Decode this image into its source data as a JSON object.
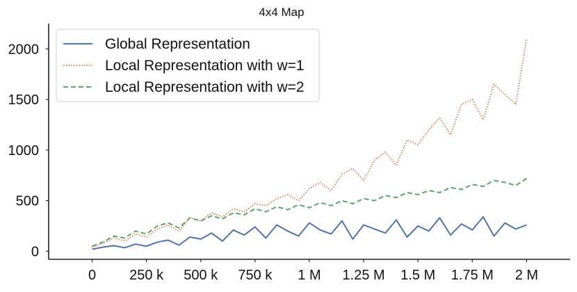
{
  "chart_data": {
    "type": "line",
    "title": "4x4 Map",
    "xlabel": "",
    "ylabel": "",
    "xlim": [
      -200000,
      2200000
    ],
    "ylim": [
      -80,
      2250
    ],
    "grid": false,
    "legend_position": "top-left",
    "x_ticks": [
      {
        "value": 0,
        "label": "0"
      },
      {
        "value": 250000,
        "label": "250 k"
      },
      {
        "value": 500000,
        "label": "500 k"
      },
      {
        "value": 750000,
        "label": "750 k"
      },
      {
        "value": 1000000,
        "label": "1 M"
      },
      {
        "value": 1250000,
        "label": "1.25 M"
      },
      {
        "value": 1500000,
        "label": "1.5 M"
      },
      {
        "value": 1750000,
        "label": "1.75 M"
      },
      {
        "value": 2000000,
        "label": "2 M"
      }
    ],
    "y_ticks": [
      {
        "value": 0,
        "label": "0"
      },
      {
        "value": 500,
        "label": "500"
      },
      {
        "value": 1000,
        "label": "1000"
      },
      {
        "value": 1500,
        "label": "1500"
      },
      {
        "value": 2000,
        "label": "2000"
      }
    ],
    "x": [
      0,
      50000,
      100000,
      150000,
      200000,
      250000,
      300000,
      350000,
      400000,
      450000,
      500000,
      550000,
      600000,
      650000,
      700000,
      750000,
      800000,
      850000,
      900000,
      950000,
      1000000,
      1050000,
      1100000,
      1150000,
      1200000,
      1250000,
      1300000,
      1350000,
      1400000,
      1450000,
      1500000,
      1550000,
      1600000,
      1650000,
      1700000,
      1750000,
      1800000,
      1850000,
      1900000,
      1950000,
      2000000
    ],
    "series": [
      {
        "name": "Global Representation",
        "color": "#4c72b0",
        "dash": "solid",
        "values": [
          20,
          40,
          55,
          35,
          70,
          50,
          90,
          110,
          60,
          140,
          120,
          180,
          100,
          210,
          160,
          240,
          130,
          260,
          200,
          150,
          280,
          210,
          170,
          300,
          120,
          260,
          220,
          180,
          310,
          140,
          250,
          200,
          330,
          160,
          270,
          210,
          340,
          150,
          280,
          220,
          260
        ]
      },
      {
        "name": "Local Representation with w=1",
        "color": "#dd8452",
        "dash": "dotted",
        "values": [
          40,
          80,
          130,
          100,
          170,
          140,
          220,
          260,
          200,
          330,
          300,
          380,
          340,
          420,
          390,
          470,
          450,
          520,
          560,
          500,
          620,
          680,
          600,
          760,
          820,
          700,
          900,
          980,
          850,
          1100,
          1050,
          1200,
          1320,
          1150,
          1450,
          1500,
          1300,
          1650,
          1550,
          1450,
          2100
        ]
      },
      {
        "name": "Local Representation with w=2",
        "color": "#55a868",
        "dash": "dashed",
        "values": [
          50,
          90,
          150,
          130,
          200,
          170,
          250,
          280,
          230,
          330,
          300,
          350,
          320,
          380,
          360,
          420,
          390,
          440,
          410,
          460,
          430,
          480,
          450,
          500,
          470,
          520,
          500,
          550,
          530,
          580,
          560,
          600,
          580,
          630,
          610,
          660,
          640,
          700,
          680,
          650,
          720
        ]
      }
    ]
  }
}
